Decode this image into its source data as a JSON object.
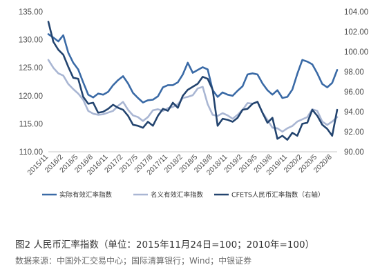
{
  "caption": "图2 人民币汇率指数（单位：2015年11月24日=100；2010年=100）",
  "source": "数据来源：中国外汇交易中心；国际清算银行；Wind；中银证券",
  "colors": {
    "real": "#3a6aa6",
    "nominal": "#a9b6d3",
    "cfets": "#23446f"
  },
  "chart_data": {
    "type": "line",
    "x": [
      "2015/11",
      "2015/12",
      "2016/1",
      "2016/2",
      "2016/3",
      "2016/4",
      "2016/5",
      "2016/6",
      "2016/7",
      "2016/8",
      "2016/9",
      "2016/10",
      "2016/11",
      "2016/12",
      "2017/1",
      "2017/2",
      "2017/3",
      "2017/4",
      "2017/5",
      "2017/6",
      "2017/7",
      "2017/8",
      "2017/9",
      "2017/10",
      "2017/11",
      "2017/12",
      "2018/1",
      "2018/2",
      "2018/3",
      "2018/4",
      "2018/5",
      "2018/6",
      "2018/7",
      "2018/8",
      "2018/9",
      "2018/10",
      "2018/11",
      "2018/12",
      "2019/1",
      "2019/2",
      "2019/3",
      "2019/4",
      "2019/5",
      "2019/6",
      "2019/7",
      "2019/8",
      "2019/9",
      "2019/10",
      "2019/11",
      "2019/12",
      "2020/1",
      "2020/2",
      "2020/3",
      "2020/4",
      "2020/5",
      "2020/6",
      "2020/7",
      "2020/8",
      "2020/9"
    ],
    "xticks": [
      "2015/11",
      "2016/2",
      "2016/5",
      "2016/8",
      "2016/11",
      "2017/2",
      "2017/5",
      "2017/8",
      "2017/11",
      "2018/2",
      "2018/5",
      "2018/8",
      "2018/11",
      "2019/2",
      "2019/5",
      "2019/8",
      "2019/11",
      "2020/2",
      "2020/5",
      "2020/8"
    ],
    "ylim": [
      110,
      135
    ],
    "yticks": [
      "110.00",
      "115.00",
      "120.00",
      "125.00",
      "130.00",
      "135.00"
    ],
    "y2lim": [
      90,
      104
    ],
    "y2ticks": [
      "90.00",
      "92.00",
      "94.00",
      "96.00",
      "98.00",
      "100.00",
      "102.00",
      "104.00"
    ],
    "series": [
      {
        "name": "实际有效汇率指数",
        "axis": "left",
        "values": [
          131.0,
          130.4,
          129.7,
          130.8,
          127.7,
          125.9,
          124.7,
          122.4,
          120.2,
          119.7,
          120.4,
          120.2,
          120.7,
          121.9,
          122.8,
          123.5,
          122.2,
          120.5,
          119.6,
          118.8,
          119.2,
          119.3,
          119.9,
          121.5,
          121.9,
          121.9,
          122.4,
          123.8,
          125.9,
          124.1,
          124.6,
          125.1,
          124.7,
          121.0,
          119.8,
          120.6,
          120.2,
          120.0,
          120.9,
          121.7,
          123.8,
          124.0,
          123.8,
          122.2,
          121.0,
          120.2,
          121.0,
          119.6,
          119.8,
          121.1,
          123.9,
          126.4,
          126.1,
          125.6,
          124.0,
          122.1,
          121.5,
          122.3,
          124.6
        ]
      },
      {
        "name": "名义有效汇率指数",
        "axis": "left",
        "values": [
          126.4,
          125.0,
          124.0,
          123.6,
          122.1,
          121.2,
          120.4,
          119.3,
          117.3,
          116.8,
          116.6,
          116.7,
          117.0,
          117.3,
          118.2,
          118.9,
          117.5,
          116.5,
          116.2,
          115.5,
          116.2,
          117.4,
          117.6,
          117.3,
          117.8,
          118.0,
          118.5,
          119.6,
          119.8,
          120.1,
          121.3,
          121.6,
          118.5,
          116.6,
          116.4,
          116.9,
          116.5,
          115.9,
          116.6,
          117.5,
          118.7,
          118.6,
          118.9,
          117.0,
          115.7,
          114.3,
          114.2,
          113.6,
          114.2,
          114.6,
          115.4,
          115.8,
          116.2,
          117.6,
          117.3,
          115.4,
          114.8,
          115.4,
          116.2
        ]
      },
      {
        "name": "CFETS人民币汇率指数（右轴）",
        "axis": "right",
        "values": [
          103.0,
          101.0,
          100.2,
          99.7,
          98.5,
          97.4,
          97.3,
          95.5,
          94.8,
          94.9,
          93.9,
          94.0,
          94.3,
          94.7,
          94.4,
          94.2,
          93.6,
          92.7,
          92.6,
          92.4,
          93.0,
          92.6,
          93.6,
          94.3,
          94.1,
          94.9,
          94.4,
          95.6,
          96.2,
          96.5,
          96.8,
          97.5,
          97.3,
          96.2,
          92.6,
          93.3,
          93.2,
          93.0,
          93.4,
          94.2,
          94.3,
          94.8,
          95.0,
          93.9,
          92.9,
          93.4,
          91.3,
          91.6,
          91.2,
          91.9,
          91.6,
          92.8,
          92.9,
          94.2,
          93.6,
          92.7,
          92.3,
          91.6,
          94.2
        ]
      }
    ]
  }
}
